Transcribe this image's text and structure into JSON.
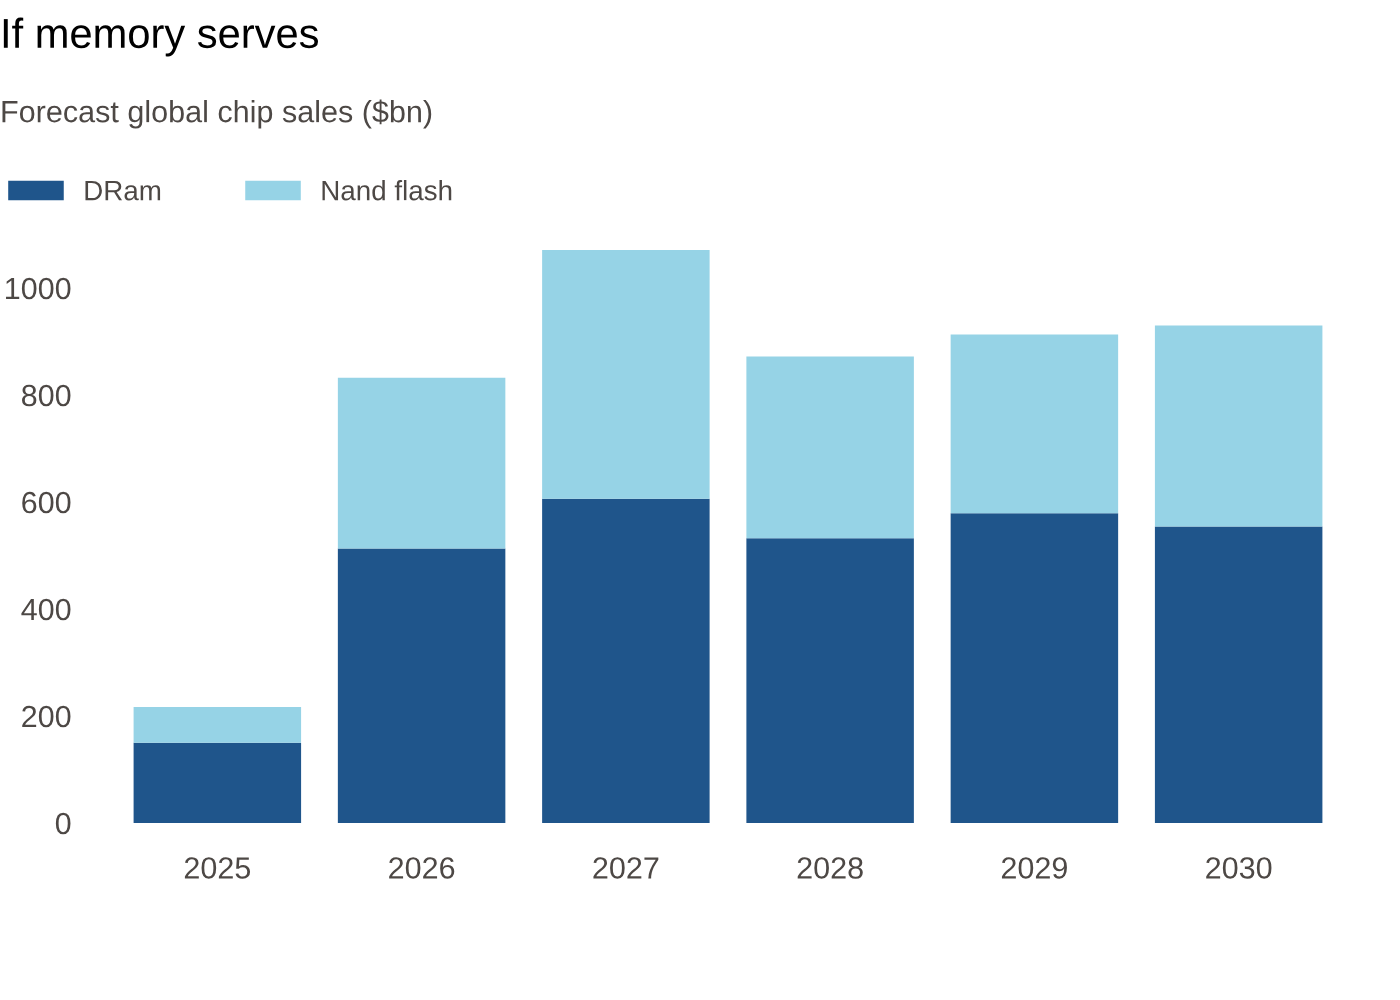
{
  "chart_data": {
    "type": "bar",
    "title": "If memory serves",
    "subtitle": "Forecast global chip sales ($bn)",
    "categories": [
      "2025",
      "2026",
      "2027",
      "2028",
      "2029",
      "2030"
    ],
    "stacked": true,
    "series": [
      {
        "name": "DRam",
        "color": "#1f558b",
        "values": [
          150,
          513,
          606,
          532,
          579,
          554
        ]
      },
      {
        "name": "Nand flash",
        "color": "#96d3e6",
        "values": [
          67,
          319,
          465,
          340,
          334,
          376
        ]
      }
    ],
    "ylim": [
      0,
      1071
    ],
    "yticks": [
      0,
      200,
      400,
      600,
      800,
      1000
    ],
    "legend": "top left"
  }
}
